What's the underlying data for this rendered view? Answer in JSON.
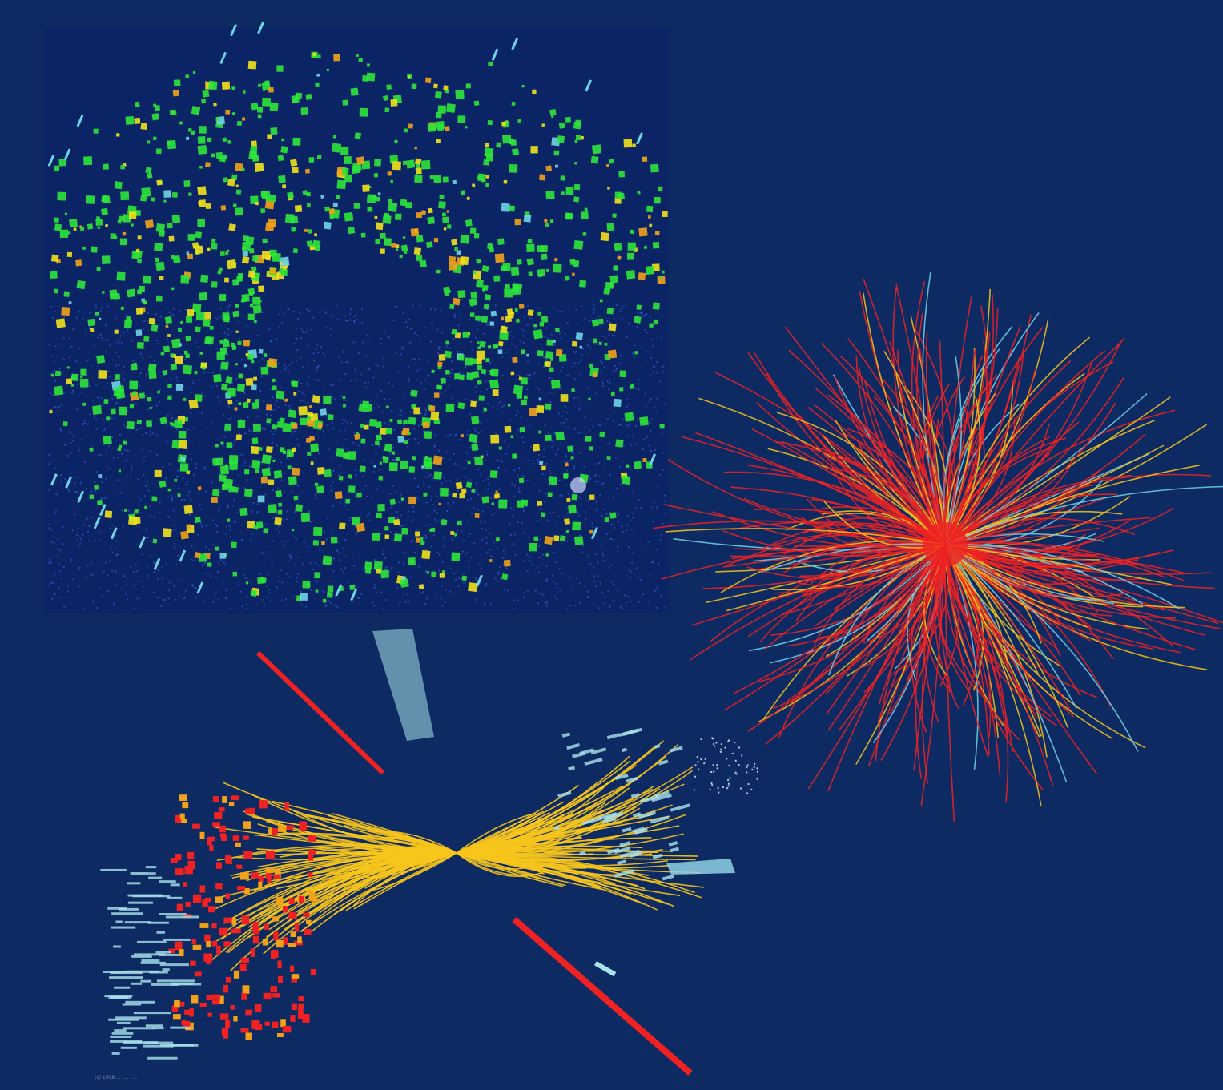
{
  "scene": {
    "background_color": "#0e2a63",
    "panel_color": "#0a2466",
    "colors": {
      "green": "#2ee63a",
      "yellow": "#f2e21a",
      "orange": "#f2a21a",
      "red": "#ee2222",
      "cyan": "#6fd4e6",
      "light_cyan": "#a9e3ec",
      "gold": "#f7c51c",
      "blue_dots": "#3d5bd6"
    },
    "panels": [
      {
        "name": "calorimeter-hit-display",
        "dominant_colors": [
          "green",
          "yellow",
          "orange",
          "cyan"
        ]
      },
      {
        "name": "radial-particle-track-burst",
        "dominant_colors": [
          "red",
          "gold",
          "cyan"
        ]
      },
      {
        "name": "collision-event-3d-view",
        "dominant_colors": [
          "gold",
          "red",
          "light_cyan"
        ]
      }
    ]
  },
  "footer": {
    "caption": "(c) 1998 ... .... ....."
  }
}
